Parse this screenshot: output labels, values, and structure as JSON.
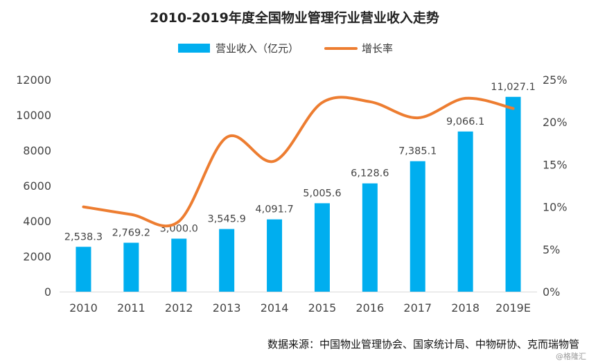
{
  "chart_data": {
    "type": "bar",
    "title": "2010-2019年度全国物业管理行业营业收入走势",
    "categories": [
      "2010",
      "2011",
      "2012",
      "2013",
      "2014",
      "2015",
      "2016",
      "2017",
      "2018",
      "2019E"
    ],
    "series": [
      {
        "name": "营业收入（亿元）",
        "type": "bar",
        "axis": "left",
        "color": "#00aeef",
        "values": [
          2538.3,
          2769.2,
          3000.0,
          3545.9,
          4091.7,
          5005.6,
          6128.6,
          7385.1,
          9066.1,
          11027.1
        ],
        "labels": [
          "2,538.3",
          "2,769.2",
          "3,000.0",
          "3,545.9",
          "4,091.7",
          "5,005.6",
          "6,128.6",
          "7,385.1",
          "9,066.1",
          "11,027.1"
        ]
      },
      {
        "name": "增长率",
        "type": "line",
        "axis": "right",
        "color": "#ed7d31",
        "values": [
          10.0,
          9.1,
          8.3,
          18.2,
          15.4,
          22.3,
          22.4,
          20.5,
          22.8,
          21.6
        ]
      }
    ],
    "y_left": {
      "ylim": [
        0,
        12000
      ],
      "ticks": [
        0,
        2000,
        4000,
        6000,
        8000,
        10000,
        12000
      ],
      "tick_labels": [
        "0",
        "2000",
        "4000",
        "6000",
        "8000",
        "10000",
        "12000"
      ]
    },
    "y_right": {
      "ylim": [
        0,
        25
      ],
      "ticks": [
        0,
        5,
        10,
        15,
        20,
        25
      ],
      "tick_labels": [
        "0%",
        "5%",
        "10%",
        "15%",
        "20%",
        "25%"
      ]
    },
    "grid": false,
    "legend": "top-center"
  },
  "source_text": "数据来源：中国物业管理协会、国家统计局、中物研协、克而瑞物管",
  "watermark": "@格隆汇"
}
